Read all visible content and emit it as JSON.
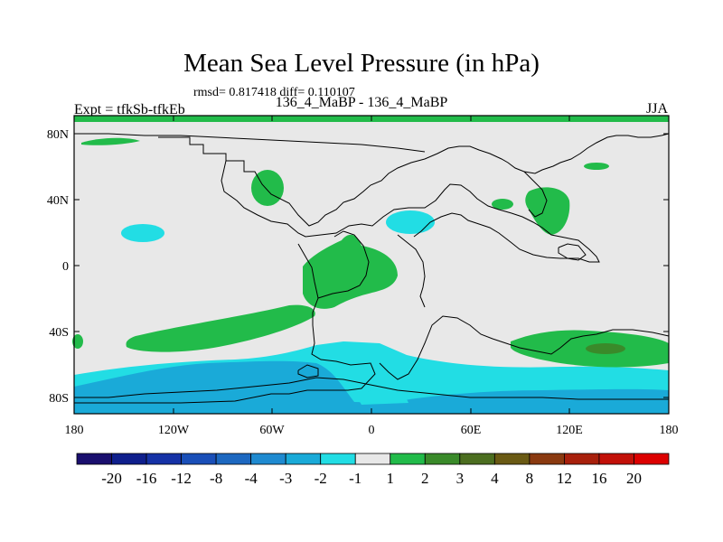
{
  "title": "Mean Sea Level Pressure (in hPa)",
  "stats": "rmsd= 0.817418 diff= 0.110107",
  "left_label": "Expt = tfkSb-tfkEb",
  "center_label": "136_4_MaBP - 136_4_MaBP",
  "right_label": "JJA",
  "lat_ticks": [
    "80N",
    "40N",
    "0",
    "40S",
    "80S"
  ],
  "lon_ticks": [
    "180",
    "120W",
    "60W",
    "0",
    "60E",
    "120E",
    "180"
  ],
  "colorbar": {
    "labels": [
      "-20",
      "-16",
      "-12",
      "-8",
      "-4",
      "-3",
      "-2",
      "-1",
      "1",
      "2",
      "3",
      "4",
      "8",
      "12",
      "16",
      "20"
    ],
    "colors": [
      "#1a0f6e",
      "#0f1f8c",
      "#1532a6",
      "#1a4fb8",
      "#1d68c0",
      "#1f8ad0",
      "#1aaad8",
      "#22dde4",
      "#e8e8e8",
      "#22bb4a",
      "#3a8a2a",
      "#4c6e20",
      "#6a5a14",
      "#8a3a10",
      "#a8200c",
      "#c21008",
      "#dc0000"
    ]
  }
}
